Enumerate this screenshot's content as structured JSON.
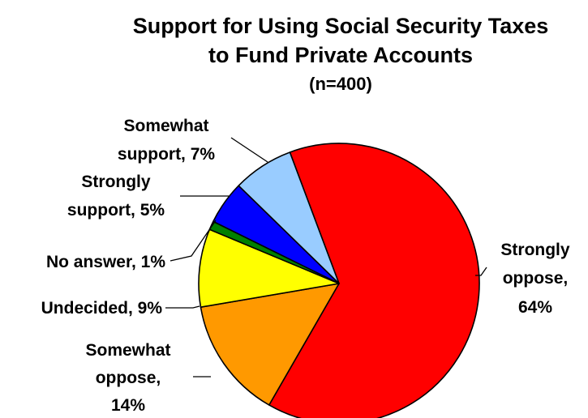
{
  "chart_data": {
    "type": "pie",
    "title": "Support for Using Social Security Taxes to Fund Private Accounts",
    "title_lines": [
      "Support for Using Social Security Taxes",
      "to Fund Private Accounts"
    ],
    "subtitle": "(n=400)",
    "legend": "none",
    "slices": [
      {
        "label": "Strongly oppose",
        "value": 64,
        "color": "#ff0000",
        "label_lines": [
          "Strongly",
          "oppose,",
          "64%"
        ]
      },
      {
        "label": "Somewhat oppose",
        "value": 14,
        "color": "#ff9900",
        "label_lines": [
          "Somewhat",
          "oppose,",
          "14%"
        ]
      },
      {
        "label": "Undecided",
        "value": 9,
        "color": "#ffff00",
        "label_lines": [
          "Undecided, 9%"
        ]
      },
      {
        "label": "No answer",
        "value": 1,
        "color": "#008000",
        "label_lines": [
          "No answer, 1%"
        ]
      },
      {
        "label": "Strongly support",
        "value": 5,
        "color": "#0000ff",
        "label_lines": [
          "Strongly",
          "support, 5%"
        ]
      },
      {
        "label": "Somewhat support",
        "value": 7,
        "color": "#99ccff",
        "label_lines": [
          "Somewhat",
          "support, 7%"
        ]
      }
    ]
  }
}
